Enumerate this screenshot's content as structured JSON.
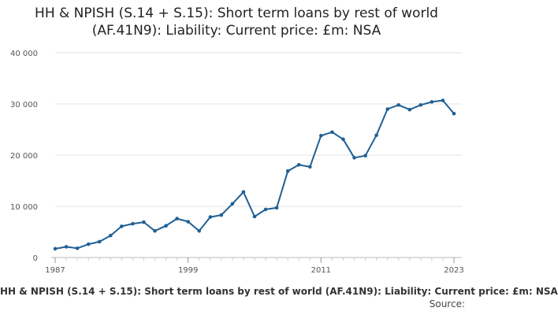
{
  "chart_data": {
    "type": "line",
    "title": "HH & NPISH (S.14 + S.15): Short term loans by rest of world (AF.41N9): Liability: Current price: £m: NSA",
    "subtitle_footer": "HH & NPISH (S.14 + S.15): Short term loans by rest of world (AF.41N9): Liability: Current price: £m: NSA",
    "source_label": "Source:",
    "xlabel": "",
    "ylabel": "",
    "xlim": [
      1987,
      2023
    ],
    "ylim": [
      0,
      40000
    ],
    "y_ticks": [
      0,
      10000,
      20000,
      30000,
      40000
    ],
    "y_tick_labels": [
      "0",
      "10 000",
      "20 000",
      "30 000",
      "40 000"
    ],
    "x_ticks": [
      1987,
      1999,
      2011,
      2023
    ],
    "x_tick_labels": [
      "1987",
      "1999",
      "2011",
      "2023"
    ],
    "grid": "horizontal",
    "line_color": "#206095",
    "series": [
      {
        "x": [
          1987,
          1988,
          1989,
          1990,
          1991,
          1992,
          1993,
          1994,
          1995,
          1996,
          1997,
          1998,
          1999,
          2000,
          2001,
          2002,
          2003,
          2004,
          2005,
          2006,
          2007,
          2008,
          2009,
          2010,
          2011,
          2012,
          2013,
          2014,
          2015,
          2016,
          2017,
          2018,
          2019,
          2020,
          2021,
          2022,
          2023
        ],
        "values": [
          1700,
          2100,
          1800,
          2600,
          3100,
          4300,
          6100,
          6600,
          6900,
          5200,
          6200,
          7600,
          7000,
          5200,
          7900,
          8300,
          10500,
          12800,
          8000,
          9400,
          9700,
          16900,
          18100,
          17700,
          23800,
          24500,
          23100,
          19500,
          19900,
          23900,
          29000,
          29800,
          28900,
          29800,
          30400,
          30700,
          28100
        ]
      }
    ]
  }
}
